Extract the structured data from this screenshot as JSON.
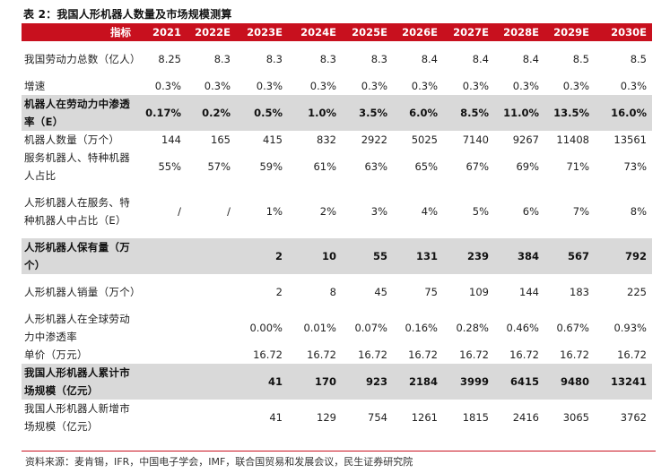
{
  "caption": "表 2：我国人形机器人数量及市场规模测算",
  "header": {
    "label": "指标",
    "years": [
      "2021",
      "2022E",
      "2023E",
      "2024E",
      "2025E",
      "2026E",
      "2027E",
      "2028E",
      "2029E",
      "2030E"
    ]
  },
  "rows": [
    {
      "label": "我国劳动力总数（亿人）",
      "shaded": false,
      "lines": 2,
      "values": [
        "8.25",
        "8.3",
        "8.3",
        "8.3",
        "8.3",
        "8.4",
        "8.4",
        "8.4",
        "8.5",
        "8.5"
      ]
    },
    {
      "label": "增速",
      "shaded": false,
      "lines": 1,
      "values": [
        "0.3%",
        "0.3%",
        "0.3%",
        "0.3%",
        "0.3%",
        "0.3%",
        "0.3%",
        "0.3%",
        "0.3%",
        "0.3%"
      ]
    },
    {
      "label": "机器人在劳动力中渗透率（E）",
      "shaded": true,
      "lines": 2,
      "values": [
        "0.17%",
        "0.2%",
        "0.5%",
        "1.0%",
        "3.5%",
        "6.0%",
        "8.5%",
        "11.0%",
        "13.5%",
        "16.0%"
      ]
    },
    {
      "label": "机器人数量（万个）",
      "shaded": false,
      "lines": 1,
      "values": [
        "144",
        "165",
        "415",
        "832",
        "2922",
        "5025",
        "7140",
        "9267",
        "11408",
        "13561"
      ]
    },
    {
      "label": "服务机器人、特种机器人占比",
      "shaded": false,
      "lines": 2,
      "values": [
        "55%",
        "57%",
        "59%",
        "61%",
        "63%",
        "65%",
        "67%",
        "69%",
        "71%",
        "73%"
      ]
    },
    {
      "label": "人形机器人在服务、特种机器人中占比（E）",
      "shaded": false,
      "lines": 3,
      "values": [
        "/",
        "/",
        "1%",
        "2%",
        "3%",
        "4%",
        "5%",
        "6%",
        "7%",
        "8%"
      ]
    },
    {
      "label": "人形机器人保有量（万个）",
      "shaded": true,
      "lines": 2,
      "values": [
        "",
        "",
        "2",
        "10",
        "55",
        "131",
        "239",
        "384",
        "567",
        "792"
      ]
    },
    {
      "label": "人形机器人销量（万个）",
      "shaded": false,
      "lines": 2,
      "values": [
        "",
        "",
        "2",
        "8",
        "45",
        "75",
        "109",
        "144",
        "183",
        "225"
      ]
    },
    {
      "label": "人形机器人在全球劳动力中渗透率",
      "shaded": false,
      "lines": 2,
      "values": [
        "",
        "",
        "0.00%",
        "0.01%",
        "0.07%",
        "0.16%",
        "0.28%",
        "0.46%",
        "0.67%",
        "0.93%"
      ]
    },
    {
      "label": "单价（万元）",
      "shaded": false,
      "lines": 1,
      "values": [
        "",
        "",
        "16.72",
        "16.72",
        "16.72",
        "16.72",
        "16.72",
        "16.72",
        "16.72",
        "16.72"
      ]
    },
    {
      "label": "我国人形机器人累计市场规模（亿元）",
      "shaded": true,
      "lines": 2,
      "values": [
        "",
        "",
        "41",
        "170",
        "923",
        "2184",
        "3999",
        "6415",
        "9480",
        "13241"
      ]
    },
    {
      "label": "我国人形机器人新增市场规模（亿元）",
      "shaded": false,
      "lines": 2,
      "values": [
        "",
        "",
        "41",
        "129",
        "754",
        "1261",
        "1815",
        "2416",
        "3065",
        "3762"
      ]
    }
  ],
  "source": "资料来源：麦肯锡，IFR，中国电子学会，IMF，联合国贸易和发展会议，民生证券研究院",
  "colors": {
    "header_bg": "#c8101e",
    "shaded_row_bg": "#d9d9d9",
    "header_text": "#ffffff"
  }
}
